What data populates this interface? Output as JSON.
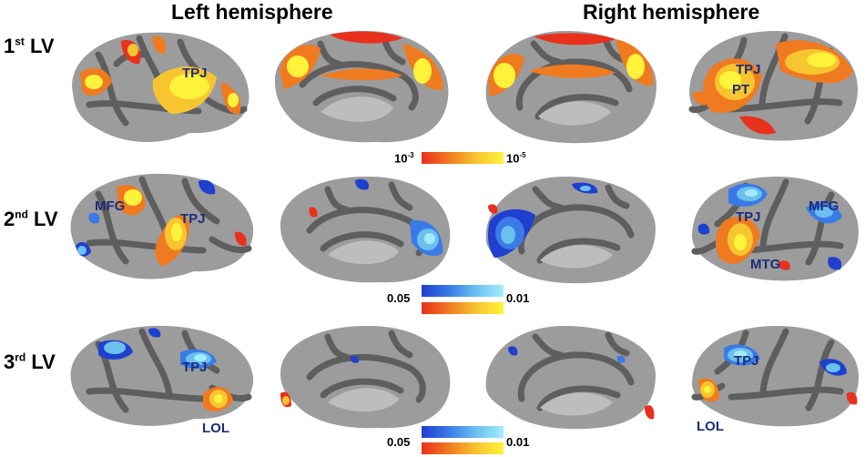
{
  "titles": {
    "left": "Left hemisphere",
    "right": "Right hemisphere"
  },
  "rows": [
    {
      "ordinal": "1",
      "suffix": "st",
      "label": " LV"
    },
    {
      "ordinal": "2",
      "suffix": "nd",
      "label": " LV"
    },
    {
      "ordinal": "3",
      "suffix": "rd",
      "label": " LV"
    }
  ],
  "annotations": {
    "r1_left_tpj": "TPJ",
    "r1_right_tpj": "TPJ",
    "r1_right_pt": "PT",
    "r2_left_mfg": "MFG",
    "r2_left_tpj": "TPJ",
    "r2_right_tpj": "TPJ",
    "r2_right_mfg": "MFG",
    "r2_right_mtg": "MTG",
    "r3_left_tpj": "TPJ",
    "r3_left_lol": "LOL",
    "r3_right_tpj": "TPJ",
    "r3_right_lol": "LOL"
  },
  "colorbars": {
    "row1": {
      "min_base": "10",
      "min_exp": "-3",
      "max_base": "10",
      "max_exp": "-5"
    },
    "row2": {
      "min": "0.05",
      "max": "0.01"
    },
    "row3": {
      "min": "0.05",
      "max": "0.01"
    }
  },
  "colors": {
    "warm": [
      "#e8311c",
      "#f07a20",
      "#f7c530",
      "#fff23a"
    ],
    "cool": [
      "#1f3fcf",
      "#3a7ae6",
      "#6cc0f0",
      "#a4ecfb"
    ],
    "cortex_gyri": "#9c9c9c",
    "cortex_sulci": "#5e5e5e",
    "label_text": "#1a2e78"
  }
}
